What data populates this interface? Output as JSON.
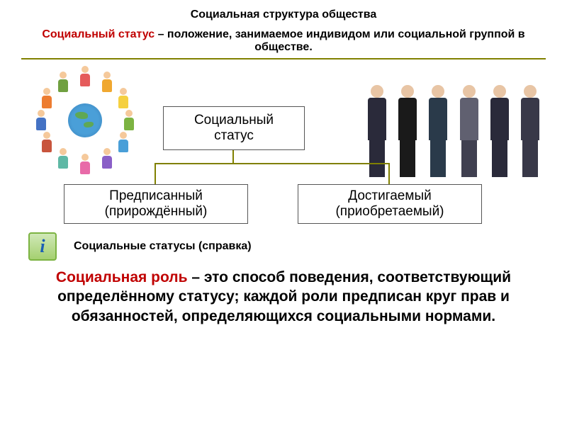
{
  "title": {
    "text": "Социальная структура общества",
    "fontsize": 17,
    "color": "#000000"
  },
  "definition1": {
    "term": "Социальный статус",
    "rest": " – положение, занимаемое индивидом или социальной группой в обществе.",
    "term_color": "#c00000",
    "fontsize": 21
  },
  "hr": {
    "color": "#808000",
    "width": 2
  },
  "diagram": {
    "root": {
      "line1": "Социальный",
      "line2": "статус"
    },
    "left": {
      "line1": "Предписанный",
      "line2": "(прирождённый)"
    },
    "right": {
      "line1": "Достигаемый",
      "line2": "(приобретаемый)"
    },
    "box_border": "#555555",
    "box_bg": "#ffffff",
    "connector_color": "#808000",
    "fontsize": 19
  },
  "circle_people": {
    "colors": [
      "#e55b5b",
      "#f0a830",
      "#f5d040",
      "#7cb342",
      "#4a9fd8",
      "#8a5fc7",
      "#e86aa8",
      "#5fb8a5",
      "#c8553d",
      "#4472c4",
      "#ed7d31",
      "#70a040"
    ]
  },
  "professionals": {
    "suits": [
      "#2a2a3a",
      "#1a1a1a",
      "#2a3a4a",
      "#606070",
      "#2a2a3a",
      "#383848"
    ],
    "legs": [
      "#2a2a3a",
      "#1a1a1a",
      "#2a3a4a",
      "#404050",
      "#2a2a3a",
      "#383848"
    ]
  },
  "info": {
    "icon_letter": "i",
    "label": "Социальные статусы (справка)",
    "icon_border": "#7cb342",
    "icon_bg_top": "#d0e8b8",
    "icon_bg_bot": "#a5d070",
    "letter_color": "#1a5fb4"
  },
  "definition2": {
    "term": "Социальная роль",
    "rest": " – это способ поведения, соответствующий определённому статусу; каждой роли предписан круг прав и обязанностей, определяющихся социальными нормами.",
    "term_color": "#c00000",
    "fontsize": 21
  }
}
